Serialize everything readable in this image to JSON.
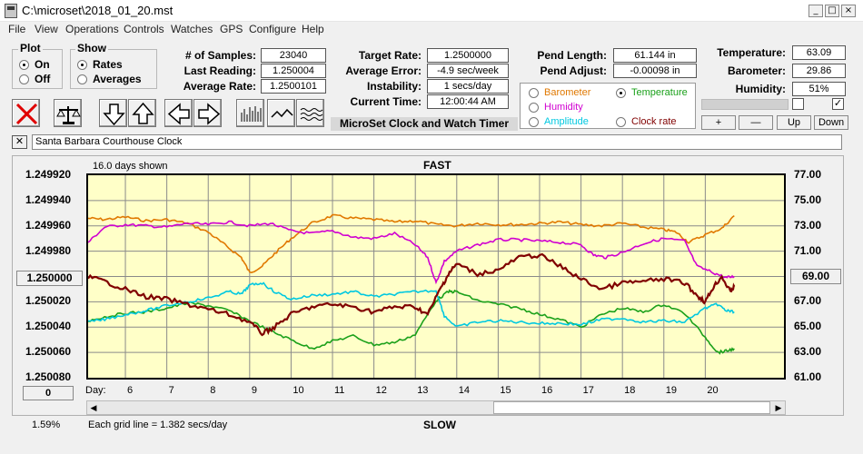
{
  "window": {
    "title": "C:\\microset\\2018_01_20.mst",
    "buttons": [
      "_",
      "□",
      "×"
    ]
  },
  "menu": [
    "File",
    "View",
    "Operations",
    "Controls",
    "Watches",
    "GPS",
    "Configure",
    "Help"
  ],
  "plot_group": {
    "title": "Plot",
    "options": [
      "On",
      "Off"
    ],
    "selected": "On"
  },
  "show_group": {
    "title": "Show",
    "options": [
      "Rates",
      "Averages"
    ],
    "selected": "Rates"
  },
  "stats": {
    "samples_label": "# of Samples:",
    "samples": "23040",
    "last_reading_label": "Last Reading:",
    "last_reading": "1.250004",
    "average_rate_label": "Average Rate:",
    "average_rate": "1.2500101",
    "target_rate_label": "Target Rate:",
    "target_rate": "1.2500000",
    "average_error_label": "Average Error:",
    "average_error": "-4.9 sec/week",
    "instability_label": "Instability:",
    "instability": "1 secs/day",
    "current_time_label": "Current Time:",
    "current_time": "12:00:44 AM",
    "pend_length_label": "Pend Length:",
    "pend_length": "61.144 in",
    "pend_adjust_label": "Pend Adjust:",
    "pend_adjust": "-0.00098 in",
    "temperature_label": "Temperature:",
    "temperature": "63.09",
    "barometer_label": "Barometer:",
    "barometer": "29.86",
    "humidity_label": "Humidity:",
    "humidity": "51%"
  },
  "app_caption": "MicroSet Clock and Watch Timer",
  "series_selector": [
    {
      "label": "Barometer",
      "color": "#e07800",
      "selected": false
    },
    {
      "label": "Temperature",
      "color": "#1aa01a",
      "selected": true
    },
    {
      "label": "Humidity",
      "color": "#d000d0",
      "selected": false
    },
    {
      "label": "Amplitude",
      "color": "#00c8e0",
      "selected": false
    },
    {
      "label": "Clock rate",
      "color": "#800000",
      "selected": false
    }
  ],
  "small_buttons": [
    "+",
    "—",
    "Up",
    "Down"
  ],
  "checkboxes": [
    {
      "checked": false
    },
    {
      "checked": true
    }
  ],
  "clock_name": "Santa Barbara Courthouse Clock",
  "close_symbol": "✕",
  "toolbar_icons": [
    "stop-icon",
    "balance-icon",
    "arrow-down-icon",
    "arrow-up-icon",
    "arrow-left-icon",
    "arrow-right-icon",
    "bar-graph-icon",
    "wave-icon",
    "ripple-icon"
  ],
  "chart_header": {
    "days_shown": "16.0 days shown",
    "top_label": "FAST",
    "bottom_label": "SLOW"
  },
  "footer": {
    "left_value": "1.59%",
    "grid_note": "Each grid line = 1.382 secs/day"
  },
  "left_button_top": "1.250000",
  "left_button_bottom": "0",
  "right_button": "69.00",
  "chart_data": {
    "type": "line",
    "xlabel": "Day:",
    "x_ticks": [
      6,
      7,
      8,
      9,
      10,
      11,
      12,
      13,
      14,
      15,
      16,
      17,
      18,
      19,
      20
    ],
    "xlim": [
      5.1,
      21.9
    ],
    "y_left_ticks": [
      "1.249920",
      "1.249940",
      "1.249960",
      "1.249980",
      "1.250000",
      "1.250020",
      "1.250040",
      "1.250060",
      "1.250080"
    ],
    "y_left_lim": [
      1.24992,
      1.25008
    ],
    "y_left_inverted": true,
    "y_right_ticks": [
      "77.00",
      "75.00",
      "73.00",
      "71.00",
      "69.00",
      "67.00",
      "65.00",
      "63.00",
      "61.00"
    ],
    "y_right_lim": [
      61,
      77
    ],
    "grid": true,
    "series": [
      {
        "name": "Barometer",
        "color": "#e07800",
        "axis": "right",
        "x": [
          5.1,
          5.5,
          6.0,
          6.5,
          7.0,
          7.5,
          8.0,
          8.4,
          8.8,
          9.0,
          9.3,
          9.6,
          10.0,
          10.5,
          11.0,
          11.5,
          12.0,
          12.5,
          13.0,
          13.5,
          14.0,
          14.5,
          15.0,
          15.5,
          16.0,
          16.5,
          17.0,
          17.5,
          18.0,
          18.5,
          19.0,
          19.3,
          19.6,
          20.0,
          20.4,
          20.7
        ],
        "values": [
          73.6,
          73.5,
          73.7,
          73.4,
          73.5,
          73.2,
          72.5,
          71.5,
          70.5,
          69.3,
          69.8,
          70.8,
          72.0,
          73.2,
          73.8,
          73.6,
          73.5,
          73.3,
          73.4,
          73.1,
          73.0,
          73.2,
          73.1,
          73.1,
          73.2,
          73.3,
          73.1,
          73.0,
          73.2,
          72.9,
          72.7,
          72.5,
          71.7,
          72.3,
          72.8,
          73.8
        ]
      },
      {
        "name": "Humidity",
        "color": "#d000d0",
        "axis": "right",
        "x": [
          5.1,
          5.5,
          6.0,
          6.5,
          7.0,
          7.5,
          8.0,
          8.5,
          9.0,
          9.5,
          10.0,
          10.5,
          11.0,
          11.5,
          12.0,
          12.5,
          13.0,
          13.3,
          13.5,
          13.7,
          14.0,
          14.5,
          15.0,
          15.5,
          16.0,
          16.5,
          17.0,
          17.3,
          17.6,
          18.0,
          18.5,
          19.0,
          19.5,
          19.8,
          20.2,
          20.5,
          20.7
        ],
        "values": [
          71.7,
          72.9,
          73.1,
          73.0,
          72.9,
          73.2,
          73.1,
          73.3,
          73.0,
          73.2,
          72.6,
          72.4,
          72.6,
          72.1,
          72.0,
          72.4,
          71.5,
          70.5,
          68.5,
          70.2,
          71.0,
          71.5,
          71.9,
          71.9,
          71.8,
          71.7,
          71.5,
          70.7,
          70.5,
          70.9,
          71.6,
          72.0,
          71.8,
          69.8,
          69.3,
          68.9,
          69.0
        ]
      },
      {
        "name": "Temperature",
        "color": "#1aa01a",
        "axis": "right",
        "x": [
          5.1,
          5.5,
          6.0,
          6.5,
          7.0,
          7.5,
          8.0,
          8.5,
          9.0,
          9.5,
          10.0,
          10.5,
          11.0,
          11.5,
          12.0,
          12.5,
          13.0,
          13.5,
          13.8,
          14.0,
          14.5,
          15.0,
          15.5,
          16.0,
          16.5,
          17.0,
          17.5,
          18.0,
          18.5,
          19.0,
          19.5,
          20.0,
          20.3,
          20.5,
          20.7
        ],
        "values": [
          65.5,
          65.8,
          66.1,
          66.2,
          66.5,
          66.9,
          66.7,
          66.3,
          65.5,
          64.7,
          64.0,
          63.3,
          63.9,
          64.3,
          63.6,
          63.8,
          64.4,
          67.1,
          67.8,
          67.8,
          67.1,
          66.8,
          66.5,
          66.0,
          65.6,
          65.0,
          66.0,
          66.5,
          66.2,
          66.8,
          66.1,
          64.2,
          63.0,
          63.1,
          63.3
        ]
      },
      {
        "name": "Amplitude",
        "color": "#00c8e0",
        "axis": "right",
        "x": [
          5.1,
          5.5,
          6.0,
          6.5,
          7.0,
          7.5,
          8.0,
          8.5,
          8.8,
          9.0,
          9.3,
          9.6,
          10.0,
          10.5,
          11.0,
          11.5,
          12.0,
          12.5,
          13.0,
          13.5,
          13.7,
          14.0,
          14.5,
          15.0,
          15.5,
          16.0,
          16.5,
          17.0,
          17.5,
          18.0,
          18.5,
          19.0,
          19.5,
          20.0,
          20.3,
          20.5,
          20.7
        ],
        "values": [
          65.4,
          65.6,
          66.0,
          66.3,
          66.7,
          67.0,
          67.3,
          67.8,
          67.6,
          68.3,
          68.5,
          67.8,
          67.2,
          67.5,
          67.6,
          67.8,
          67.4,
          67.6,
          67.8,
          67.9,
          65.9,
          65.0,
          65.4,
          65.5,
          65.4,
          65.3,
          65.3,
          65.2,
          65.6,
          65.7,
          65.4,
          65.5,
          65.4,
          66.5,
          66.8,
          66.3,
          66.2
        ]
      },
      {
        "name": "Clock rate",
        "color": "#800000",
        "axis": "left",
        "x": [
          5.1,
          5.5,
          6.0,
          6.5,
          7.0,
          7.5,
          8.0,
          8.5,
          9.0,
          9.3,
          9.6,
          10.0,
          10.5,
          11.0,
          11.5,
          12.0,
          12.5,
          13.0,
          13.3,
          13.6,
          13.8,
          14.0,
          14.5,
          15.0,
          15.5,
          16.0,
          16.5,
          17.0,
          17.5,
          18.0,
          18.5,
          19.0,
          19.5,
          19.8,
          20.0,
          20.2,
          20.4,
          20.6,
          20.7
        ],
        "values": [
          1.25,
          1.250004,
          1.25001,
          1.250016,
          1.250018,
          1.250022,
          1.250026,
          1.25003,
          1.250036,
          1.250045,
          1.25004,
          1.25003,
          1.250024,
          1.250022,
          1.250024,
          1.250028,
          1.250024,
          1.250024,
          1.25003,
          1.25001,
          1.249998,
          1.24999,
          1.249998,
          1.249995,
          1.249985,
          1.249983,
          1.249992,
          1.250002,
          1.25001,
          1.250005,
          1.250004,
          1.250002,
          1.250005,
          1.250015,
          1.25002,
          1.250008,
          1.25,
          1.250012,
          1.250008
        ]
      }
    ]
  }
}
